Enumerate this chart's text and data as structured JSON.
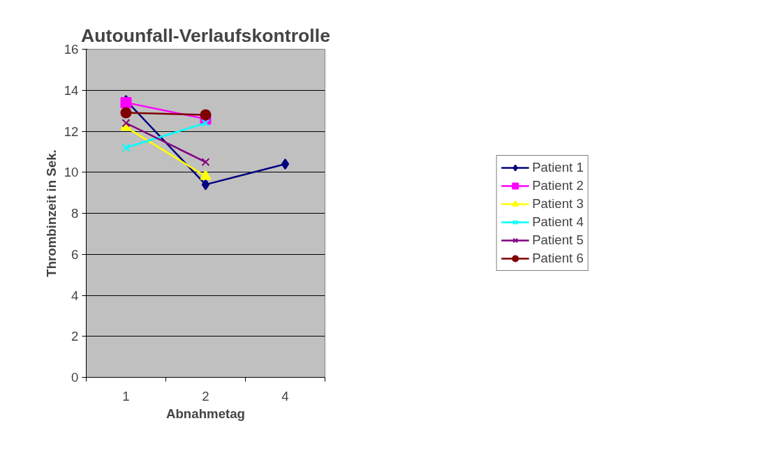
{
  "chart_data": {
    "type": "line",
    "title": "Autounfall-Verlaufskontrolle",
    "xlabel": "Abnahmetag",
    "ylabel": "Thrombinzeit in Sek.",
    "categories": [
      "1",
      "2",
      "4"
    ],
    "series": [
      {
        "name": "Patient 1",
        "color": "#000080",
        "marker": "diamond",
        "values": [
          13.5,
          9.4,
          10.4
        ]
      },
      {
        "name": "Patient 2",
        "color": "#ff00ff",
        "marker": "square",
        "values": [
          13.4,
          12.6,
          null
        ]
      },
      {
        "name": "Patient 3",
        "color": "#ffff00",
        "marker": "triangle",
        "values": [
          12.2,
          9.8,
          null
        ]
      },
      {
        "name": "Patient 4",
        "color": "#00ffff",
        "marker": "cross",
        "values": [
          11.2,
          12.4,
          null
        ]
      },
      {
        "name": "Patient 5",
        "color": "#800080",
        "marker": "cross",
        "values": [
          12.4,
          10.5,
          null
        ]
      },
      {
        "name": "Patient 6",
        "color": "#800000",
        "marker": "circle",
        "values": [
          12.9,
          12.8,
          null
        ]
      }
    ],
    "ylim": [
      0,
      16
    ],
    "yticks": [
      0,
      2,
      4,
      6,
      8,
      10,
      12,
      14,
      16
    ],
    "grid": "y",
    "legend": "right"
  }
}
